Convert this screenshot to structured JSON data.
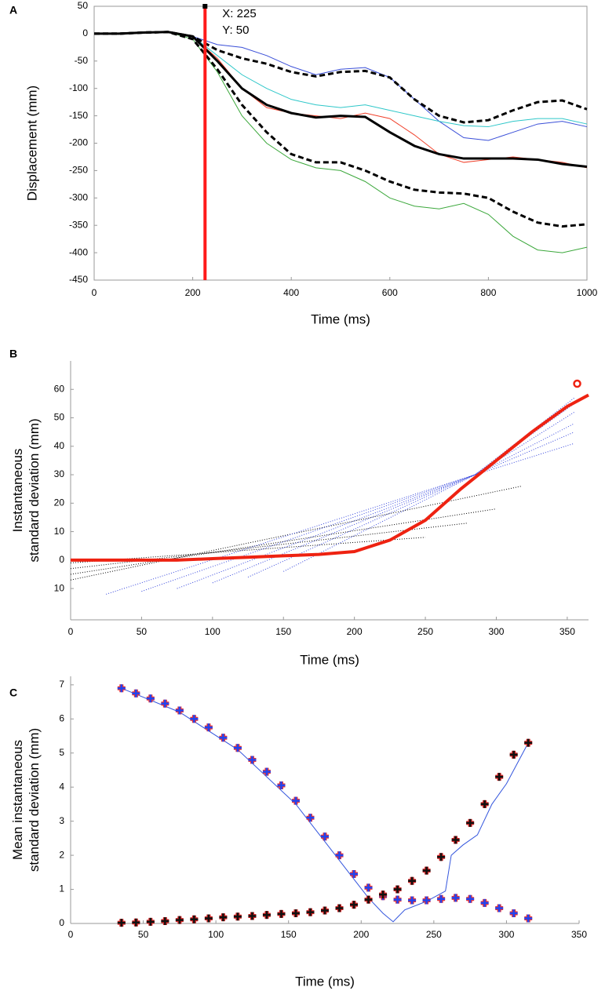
{
  "chart_data": [
    {
      "type": "line",
      "panel": "A",
      "xlabel": "Time (ms)",
      "ylabel": [
        "Displacement (mm)"
      ],
      "xlim": [
        0,
        1000
      ],
      "ylim": [
        -450,
        50
      ],
      "xticks": [
        0,
        200,
        400,
        600,
        800,
        1000
      ],
      "yticks": [
        50,
        0,
        -50,
        -100,
        -150,
        -200,
        -250,
        -300,
        -350,
        -400,
        -450
      ],
      "frame": true,
      "annotation": {
        "x": 225,
        "y": 50,
        "text": [
          "X: 225",
          "Y: 50"
        ],
        "color": "#ff1a1a"
      },
      "x": [
        0,
        50,
        100,
        150,
        200,
        250,
        300,
        350,
        400,
        450,
        500,
        550,
        600,
        650,
        700,
        750,
        800,
        850,
        900,
        950,
        1000
      ],
      "series": [
        {
          "color": "#3a4fd8",
          "width": 1,
          "values": [
            0,
            0,
            2,
            3,
            -5,
            -20,
            -25,
            -40,
            -60,
            -75,
            -65,
            -62,
            -80,
            -120,
            -160,
            -190,
            -195,
            -180,
            -165,
            -160,
            -170
          ]
        },
        {
          "color": "#2ec7c9",
          "width": 1,
          "values": [
            0,
            0,
            2,
            3,
            -5,
            -40,
            -75,
            -100,
            -120,
            -130,
            -135,
            -130,
            -140,
            -150,
            -160,
            -168,
            -170,
            -160,
            -155,
            -155,
            -165
          ]
        },
        {
          "color": "#f0402a",
          "width": 1,
          "values": [
            0,
            0,
            2,
            3,
            -5,
            -45,
            -100,
            -135,
            -145,
            -150,
            -155,
            -145,
            -155,
            -185,
            -220,
            -235,
            -230,
            -225,
            -230,
            -235,
            -245
          ]
        },
        {
          "color": "#3ca83c",
          "width": 1,
          "values": [
            0,
            0,
            2,
            3,
            -10,
            -70,
            -150,
            -200,
            -230,
            -245,
            -250,
            -270,
            -300,
            -315,
            -320,
            -310,
            -330,
            -370,
            -395,
            -400,
            -390
          ]
        },
        {
          "color": "#000000",
          "width": 3,
          "values": [
            0,
            0,
            2,
            3,
            -5,
            -50,
            -100,
            -130,
            -145,
            -153,
            -150,
            -152,
            -180,
            -205,
            -220,
            -228,
            -228,
            -228,
            -230,
            -238,
            -243
          ]
        },
        {
          "color": "#000000",
          "width": 3,
          "dash": true,
          "values": [
            0,
            0,
            2,
            3,
            -5,
            -30,
            -45,
            -55,
            -70,
            -78,
            -70,
            -68,
            -80,
            -120,
            -150,
            -162,
            -158,
            -140,
            -125,
            -122,
            -138
          ]
        },
        {
          "color": "#000000",
          "width": 3,
          "dash": true,
          "values": [
            0,
            0,
            2,
            3,
            -10,
            -65,
            -130,
            -180,
            -220,
            -235,
            -235,
            -250,
            -270,
            -285,
            -290,
            -292,
            -300,
            -325,
            -345,
            -352,
            -348
          ]
        }
      ]
    },
    {
      "type": "line",
      "panel": "B",
      "xlabel": "Time (ms)",
      "ylabel": [
        "Instantaneous",
        "standard deviation (mm)"
      ],
      "xlim": [
        0,
        365
      ],
      "ylim": [
        -21,
        70
      ],
      "xticks": [
        0,
        50,
        100,
        150,
        200,
        250,
        300,
        350
      ],
      "yticks": [
        60,
        50,
        40,
        30,
        20,
        10,
        0,
        {
          "value": -10,
          "label": "10"
        }
      ],
      "frame": false,
      "series": [
        {
          "color": "#000000",
          "width": 1,
          "dot": true,
          "x": [
            0,
            318
          ],
          "values": [
            -7,
            26
          ]
        },
        {
          "color": "#000000",
          "width": 1,
          "dot": true,
          "x": [
            0,
            300
          ],
          "values": [
            -5,
            18
          ]
        },
        {
          "color": "#000000",
          "width": 1,
          "dot": true,
          "x": [
            0,
            280
          ],
          "values": [
            -3,
            13
          ]
        },
        {
          "color": "#000000",
          "width": 1,
          "dot": true,
          "x": [
            0,
            250
          ],
          "values": [
            -1,
            8
          ]
        },
        {
          "color": "#3344dd",
          "width": 1,
          "dot": true,
          "x": [
            25,
            285,
            355
          ],
          "values": [
            -12,
            30,
            41
          ]
        },
        {
          "color": "#3344dd",
          "width": 1,
          "dot": true,
          "x": [
            50,
            285,
            355
          ],
          "values": [
            -11,
            30,
            45
          ]
        },
        {
          "color": "#3344dd",
          "width": 1,
          "dot": true,
          "x": [
            75,
            285,
            355
          ],
          "values": [
            -10,
            30,
            48
          ]
        },
        {
          "color": "#3344dd",
          "width": 1,
          "dot": true,
          "x": [
            100,
            285,
            355
          ],
          "values": [
            -8,
            30,
            52
          ]
        },
        {
          "color": "#3344dd",
          "width": 1,
          "dot": true,
          "x": [
            125,
            285,
            355
          ],
          "values": [
            -6,
            30,
            55
          ]
        },
        {
          "color": "#3344dd",
          "width": 1,
          "dot": true,
          "x": [
            150,
            285,
            355
          ],
          "values": [
            -4,
            30,
            57
          ]
        },
        {
          "color": "#ee2211",
          "width": 4,
          "x": [
            0,
            25,
            50,
            75,
            100,
            125,
            150,
            175,
            200,
            225,
            250,
            275,
            300,
            325,
            350,
            365
          ],
          "values": [
            0,
            0,
            0,
            0,
            0.5,
            1,
            1.5,
            2,
            3,
            7,
            14,
            25,
            35,
            45,
            54,
            58
          ]
        },
        {
          "color": "#ee2211",
          "marker": "circle",
          "x": [
            357
          ],
          "values": [
            62
          ]
        }
      ]
    },
    {
      "type": "line",
      "panel": "C",
      "xlabel": "Time (ms)",
      "ylabel": [
        "Mean instantaneous",
        "standard deviation (mm)"
      ],
      "xlim": [
        0,
        350
      ],
      "ylim": [
        0,
        7.25
      ],
      "xticks": [
        0,
        50,
        100,
        150,
        200,
        250,
        300,
        350
      ],
      "yticks": [
        0,
        1,
        2,
        3,
        4,
        5,
        6,
        7
      ],
      "frame": false,
      "series": [
        {
          "color": "#3355dd",
          "width": 1,
          "x": [
            35,
            75,
            115,
            155,
            175,
            195,
            205,
            215,
            222,
            230,
            245,
            258,
            262,
            270,
            280,
            290,
            300,
            315
          ],
          "values": [
            6.9,
            6.2,
            5.1,
            3.5,
            2.4,
            1.3,
            0.75,
            0.3,
            0.05,
            0.4,
            0.65,
            0.95,
            2.0,
            2.3,
            2.6,
            3.5,
            4.1,
            5.3
          ]
        },
        {
          "color": "#2244ee",
          "edge": "#e0303a",
          "marker": "plus",
          "x": [
            35,
            45,
            55,
            65,
            75,
            85,
            95,
            105,
            115,
            125,
            135,
            145,
            155,
            165,
            175,
            185,
            195,
            205,
            215,
            225,
            235,
            245,
            255,
            265,
            275,
            285,
            295,
            305,
            315
          ],
          "values": [
            6.9,
            6.75,
            6.6,
            6.45,
            6.25,
            6.0,
            5.75,
            5.45,
            5.15,
            4.8,
            4.45,
            4.05,
            3.6,
            3.1,
            2.55,
            2.0,
            1.45,
            1.05,
            0.8,
            0.7,
            0.68,
            0.68,
            0.72,
            0.75,
            0.72,
            0.6,
            0.45,
            0.3,
            0.15
          ]
        },
        {
          "color": "#111111",
          "edge": "#d02020",
          "marker": "plus",
          "x": [
            35,
            45,
            55,
            65,
            75,
            85,
            95,
            105,
            115,
            125,
            135,
            145,
            155,
            165,
            175,
            185,
            195,
            205,
            215,
            225,
            235,
            245,
            255,
            265,
            275,
            285,
            295,
            305,
            315
          ],
          "values": [
            0.02,
            0.03,
            0.05,
            0.07,
            0.1,
            0.12,
            0.15,
            0.18,
            0.2,
            0.22,
            0.25,
            0.28,
            0.3,
            0.33,
            0.38,
            0.45,
            0.55,
            0.7,
            0.85,
            1.0,
            1.25,
            1.55,
            1.95,
            2.45,
            2.95,
            3.5,
            4.3,
            4.95,
            5.3
          ]
        }
      ]
    }
  ]
}
